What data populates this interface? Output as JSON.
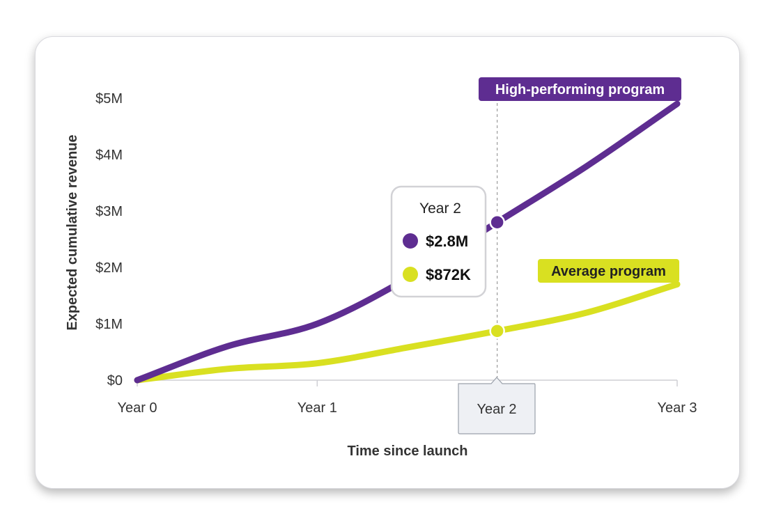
{
  "chart_data": {
    "type": "line",
    "xlabel": "Time since launch",
    "ylabel": "Expected cumulative revenue",
    "x_ticks": [
      "Year 0",
      "Year 1",
      "Year 2",
      "Year 3"
    ],
    "y_ticks": [
      "$0",
      "$1M",
      "$2M",
      "$3M",
      "$4M",
      "$5M"
    ],
    "ylim": [
      0,
      5000000
    ],
    "xlim": [
      0,
      3
    ],
    "series": [
      {
        "name": "High-performing program",
        "color": "#5e2d91",
        "x": [
          0,
          0.5,
          1,
          1.5,
          2,
          2.5,
          3
        ],
        "values": [
          0,
          600000,
          1000000,
          1800000,
          2800000,
          3800000,
          4900000
        ]
      },
      {
        "name": "Average program",
        "color": "#d9e021",
        "x": [
          0,
          0.5,
          1,
          1.5,
          2,
          2.5,
          3
        ],
        "values": [
          0,
          200000,
          300000,
          580000,
          872000,
          1200000,
          1700000
        ]
      }
    ],
    "highlight": {
      "x_label": "Year 2",
      "x": 2,
      "tooltip_title": "Year 2",
      "values_text": [
        "$2.8M",
        "$872K"
      ]
    }
  }
}
